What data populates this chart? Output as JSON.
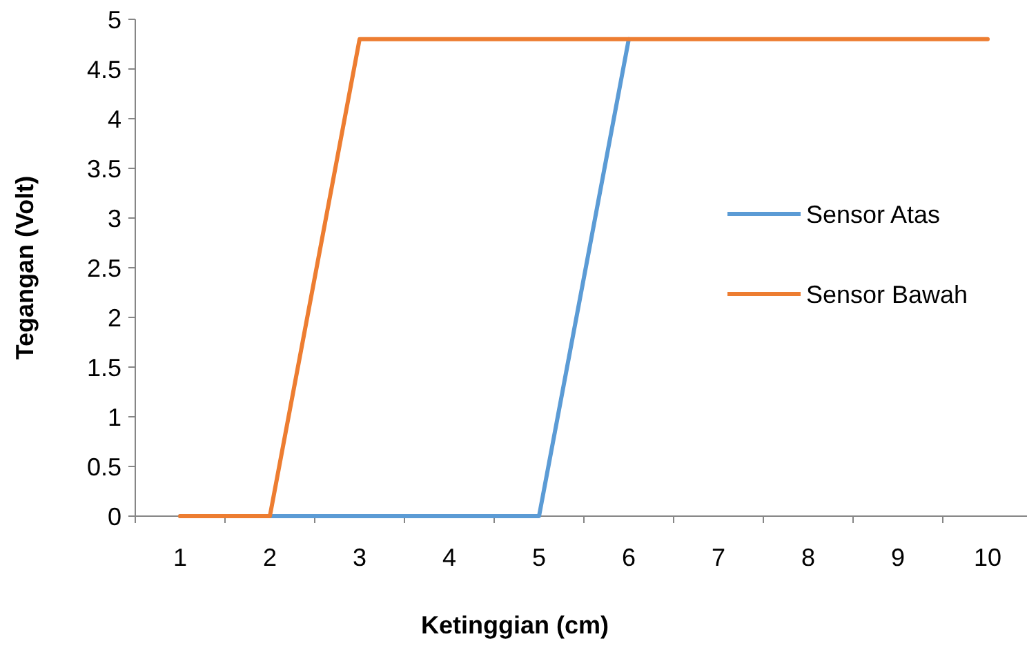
{
  "chart_data": {
    "type": "line",
    "xlabel": "Ketinggian (cm)",
    "ylabel": "Tegangan (Volt)",
    "categories": [
      "1",
      "2",
      "3",
      "4",
      "5",
      "6",
      "7",
      "8",
      "9",
      "10"
    ],
    "series": [
      {
        "name": "Sensor Atas",
        "color": "#5b9bd5",
        "values": [
          0,
          0,
          0,
          0,
          0,
          4.8,
          null,
          null,
          null,
          null
        ]
      },
      {
        "name": "Sensor Bawah",
        "color": "#ed7d31",
        "values": [
          0,
          0,
          4.8,
          4.8,
          4.8,
          4.8,
          4.8,
          4.8,
          4.8,
          4.8
        ]
      }
    ],
    "ylim": [
      0,
      5
    ],
    "yticks": [
      0,
      0.5,
      1,
      1.5,
      2,
      2.5,
      3,
      3.5,
      4,
      4.5,
      5
    ],
    "grid": false,
    "legend": "right",
    "marker": "none",
    "line_style": "solid"
  }
}
